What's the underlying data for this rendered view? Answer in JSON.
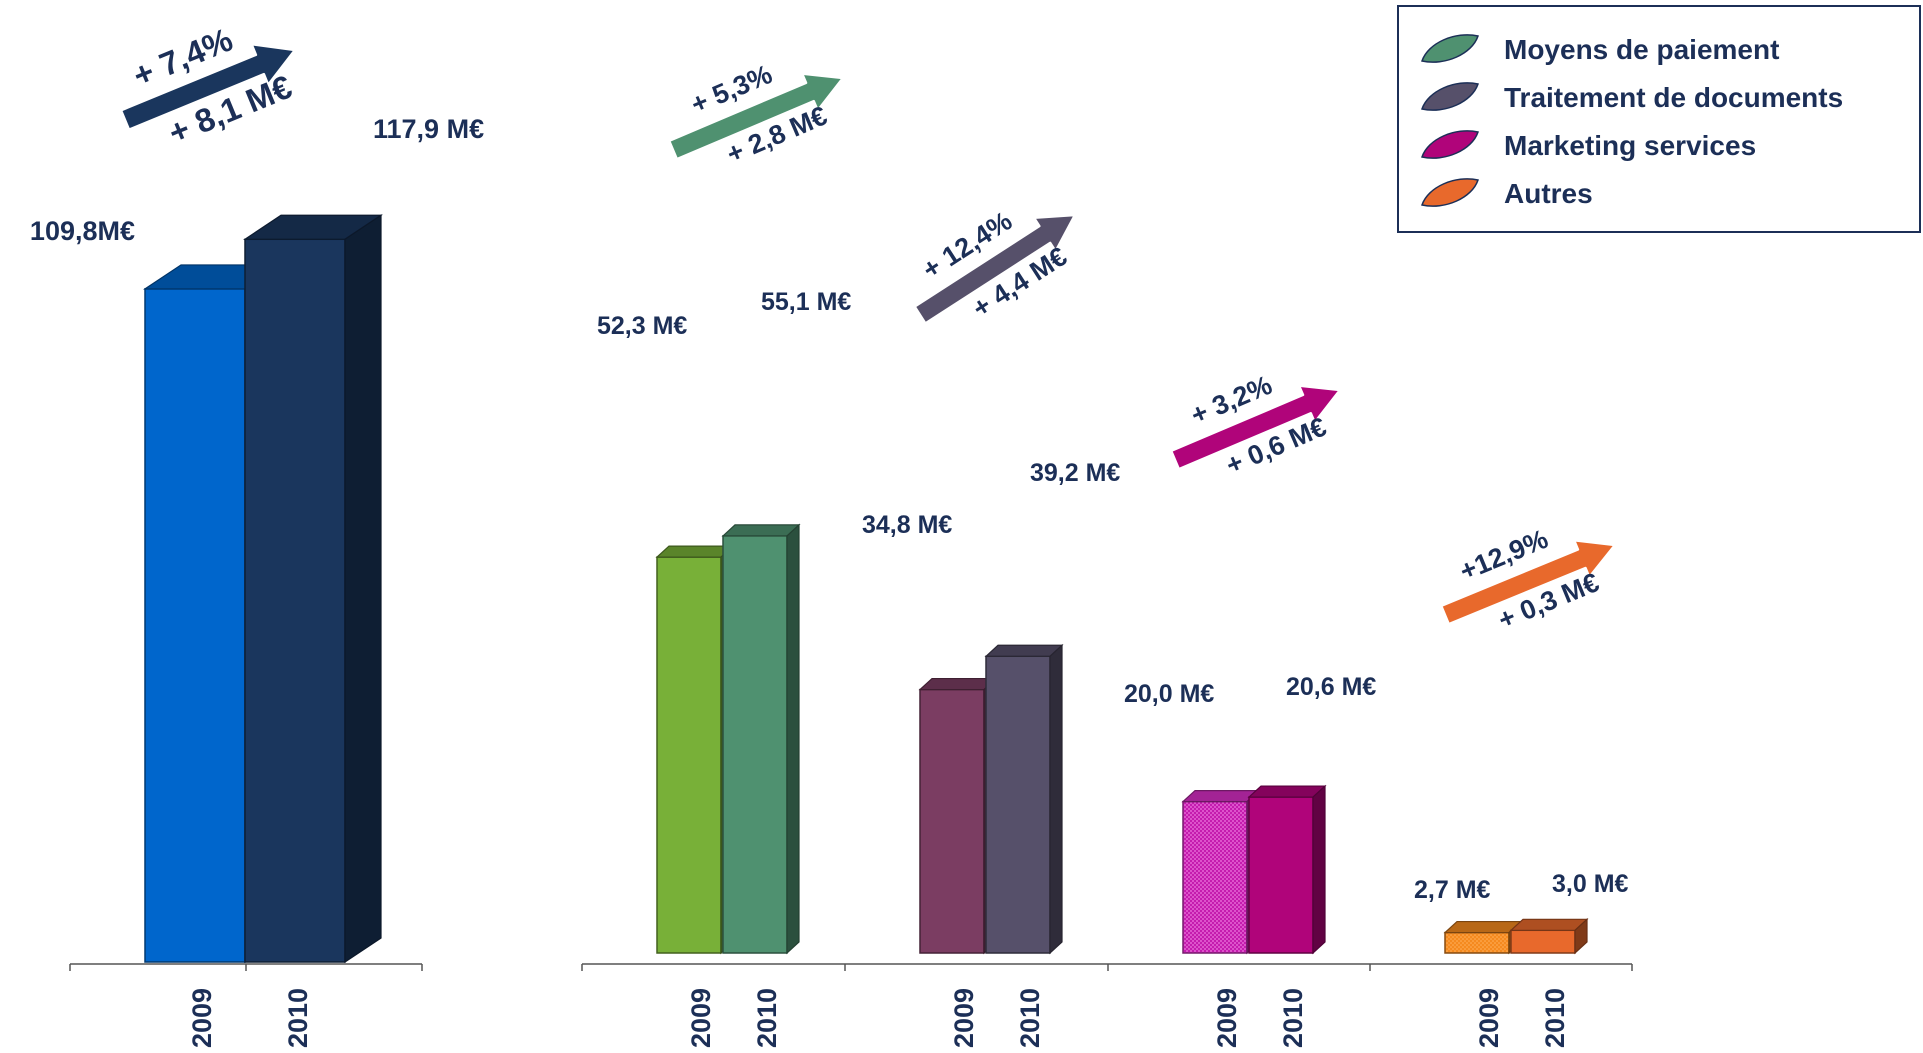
{
  "chart_data": [
    {
      "type": "bar",
      "categories": [
        "2009",
        "2010"
      ],
      "series": [
        {
          "values": [
            109.8,
            117.9
          ]
        }
      ],
      "value_labels": [
        "109,8M€",
        "117,9 M€"
      ],
      "change_pct": "+ 7,4%",
      "change_abs": "+ 8,1 M€",
      "colors": [
        "#0066cc",
        "#1a365d"
      ]
    },
    {
      "type": "bar",
      "categories": [
        "2009",
        "2010"
      ],
      "groups": [
        {
          "name": "Moyens de paiement",
          "values": [
            52.3,
            55.1
          ],
          "value_labels": [
            "52,3 M€",
            "55,1 M€"
          ],
          "change_pct": "+ 5,3%",
          "change_abs": "+ 2,8 M€",
          "colors": [
            "#78b038",
            "#4f9170"
          ],
          "arrow_color": "#4f9170"
        },
        {
          "name": "Traitement de documents",
          "values": [
            34.8,
            39.2
          ],
          "value_labels": [
            "34,8 M€",
            "39,2 M€"
          ],
          "change_pct": "+ 12,4%",
          "change_abs": "+ 4,4 M€",
          "colors": [
            "#7b3d62",
            "#56506a"
          ],
          "arrow_color": "#56506a"
        },
        {
          "name": "Marketing services",
          "values": [
            20.0,
            20.6
          ],
          "value_labels": [
            "20,0 M€",
            "20,6 M€"
          ],
          "change_pct": "+ 3,2%",
          "change_abs": "+ 0,6 M€",
          "colors": [
            "#d92fc6",
            "#b0047a"
          ],
          "arrow_color": "#b0047a"
        },
        {
          "name": "Autres",
          "values": [
            2.7,
            3.0
          ],
          "value_labels": [
            "2,7 M€",
            "3,0 M€"
          ],
          "change_pct": "+12,9%",
          "change_abs": "+ 0,3 M€",
          "colors": [
            "#f58a1f",
            "#e8692c"
          ],
          "arrow_color": "#e8692c"
        }
      ],
      "legend_position": "top-right"
    }
  ]
}
